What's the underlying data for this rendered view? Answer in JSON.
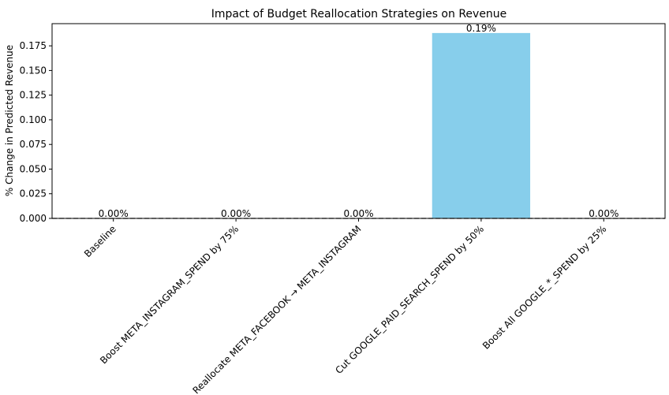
{
  "chart_data": {
    "type": "bar",
    "title": "Impact of Budget Reallocation Strategies on Revenue",
    "xlabel": "",
    "ylabel": "% Change in Predicted Revenue",
    "categories": [
      "Baseline",
      "Boost META_INSTAGRAM_SPEND by 75%",
      "Reallocate META_FACEBOOK → META_INSTAGRAM",
      "Cut GOOGLE_PAID_SEARCH_SPEND by 50%",
      "Boost All GOOGLE_*_SPEND by 25%"
    ],
    "values": [
      0.0,
      0.0,
      0.0,
      0.188,
      0.0
    ],
    "data_labels": [
      "0.00%",
      "0.00%",
      "0.00%",
      "0.19%",
      "0.00%"
    ],
    "ylim": [
      0,
      0.1975
    ],
    "yticks": [
      0.0,
      0.025,
      0.05,
      0.075,
      0.1,
      0.125,
      0.15,
      0.175
    ],
    "ytick_labels": [
      "0.000",
      "0.025",
      "0.050",
      "0.075",
      "0.100",
      "0.125",
      "0.150",
      "0.175"
    ],
    "bar_color": "#87ceeb",
    "baseline_line": "dashed gray line at y = 0",
    "grid": false,
    "legend": "none"
  }
}
